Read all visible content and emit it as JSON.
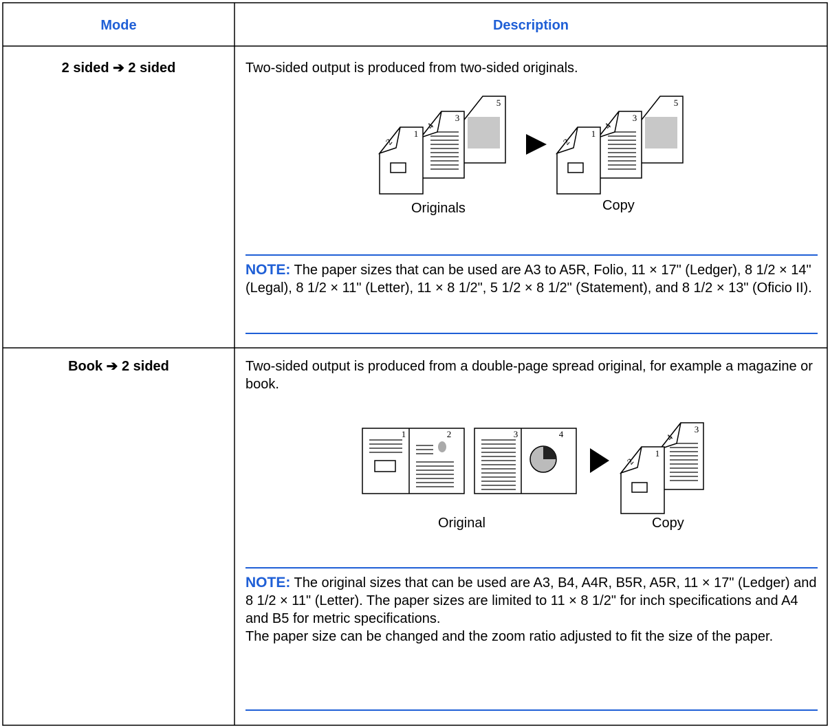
{
  "table": {
    "header": [
      "Mode",
      "Description"
    ],
    "rows": [
      {
        "mode": "2 sided ➔ 2 sided",
        "description": "Two-sided output is produced from two-sided originals.",
        "illustration": {
          "original_pages": [
            "1",
            "2",
            "3",
            "4",
            "5"
          ],
          "original_label": "Originals",
          "copy_pages": [
            "1",
            "2",
            "3",
            "4",
            "5"
          ],
          "copy_label": "Copy"
        },
        "note_label": "NOTE:",
        "note": [
          "The paper sizes that can be used are A3 to A5R, Folio, 11 × 17\" (Ledger), 8 1/2 × 14\" (Legal), 8 1/2 × 11\" (Letter), 11 × 8 1/2\", 5 1/2 × 8 1/2\" (Statement), and 8 1/2 × 13\" (Oficio II)."
        ]
      },
      {
        "mode": "Book ➔ 2 sided",
        "description": "Two-sided output is produced from a double-page spread original, for example a magazine or book.",
        "illustration": {
          "original_pages": [
            "1",
            "2",
            "3",
            "4"
          ],
          "original_label": "Original",
          "copy_pages": [
            "1",
            "2",
            "3",
            "4"
          ],
          "copy_label": "Copy"
        },
        "note_label": "NOTE:",
        "note": [
          "The original sizes that can be used are A3, B4, A4R, B5R, A5R, 11 × 17\" (Ledger) and 8 1/2 × 11\" (Letter). The paper sizes are limited to 11 × 8 1/2\" for inch specifications and A4 and B5 for metric specifications.",
          "The paper size can be changed and the zoom ratio adjusted to fit the size of the paper."
        ]
      }
    ]
  }
}
